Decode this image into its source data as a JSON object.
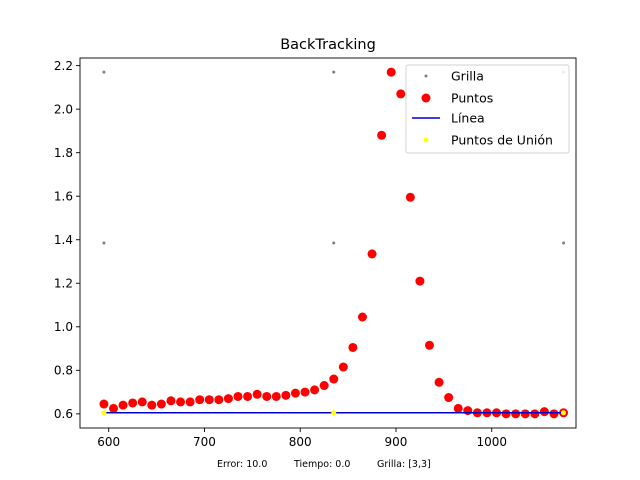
{
  "chart_data": {
    "type": "scatter",
    "title": "BackTracking",
    "xlabel": "",
    "ylabel": "",
    "xlim": [
      570,
      1088
    ],
    "ylim": [
      0.535,
      2.235
    ],
    "xticks": [
      600,
      700,
      800,
      900,
      1000
    ],
    "yticks": [
      0.6,
      0.8,
      1.0,
      1.2,
      1.4,
      1.6,
      1.8,
      2.0,
      2.2
    ],
    "xtick_labels": [
      "600",
      "700",
      "800",
      "900",
      "1000"
    ],
    "ytick_labels": [
      "0.6",
      "0.8",
      "1.0",
      "1.2",
      "1.4",
      "1.6",
      "1.8",
      "2.0",
      "2.2"
    ],
    "grid": false,
    "legend_position": "top-right",
    "series": [
      {
        "name": "Grilla",
        "kind": "scatter",
        "color": "#808080",
        "x": [
          595,
          835,
          1075,
          595,
          835,
          1075,
          595,
          835,
          1075
        ],
        "y": [
          2.17,
          2.17,
          2.17,
          1.385,
          1.385,
          1.385,
          0.605,
          0.605,
          0.605
        ]
      },
      {
        "name": "Puntos",
        "kind": "scatter",
        "color": "#ff0000",
        "x": [
          595,
          605,
          615,
          625,
          635,
          645,
          655,
          665,
          675,
          685,
          695,
          705,
          715,
          725,
          735,
          745,
          755,
          765,
          775,
          785,
          795,
          805,
          815,
          825,
          835,
          845,
          855,
          865,
          875,
          885,
          895,
          905,
          915,
          925,
          935,
          945,
          955,
          965,
          975,
          985,
          995,
          1005,
          1015,
          1025,
          1035,
          1045,
          1055,
          1065,
          1075
        ],
        "y": [
          0.645,
          0.625,
          0.64,
          0.65,
          0.655,
          0.64,
          0.645,
          0.66,
          0.655,
          0.655,
          0.665,
          0.665,
          0.665,
          0.67,
          0.68,
          0.68,
          0.69,
          0.68,
          0.68,
          0.685,
          0.695,
          0.7,
          0.71,
          0.73,
          0.76,
          0.815,
          0.905,
          1.045,
          1.335,
          1.88,
          2.17,
          2.07,
          1.595,
          1.21,
          0.915,
          0.745,
          0.675,
          0.625,
          0.615,
          0.605,
          0.605,
          0.605,
          0.6,
          0.6,
          0.6,
          0.6,
          0.61,
          0.6,
          0.605
        ]
      },
      {
        "name": "Línea",
        "kind": "line",
        "color": "#0000cc",
        "x": [
          595,
          1075
        ],
        "y": [
          0.605,
          0.605
        ]
      },
      {
        "name": "Puntos de Unión",
        "kind": "scatter",
        "color": "#ffff00",
        "x": [
          595,
          835,
          1075
        ],
        "y": [
          0.605,
          0.605,
          0.605
        ]
      }
    ],
    "footer": {
      "error": "Error: 10.0",
      "tiempo": "Tiempo: 0.0",
      "grilla": "Grilla: [3,3]"
    }
  }
}
